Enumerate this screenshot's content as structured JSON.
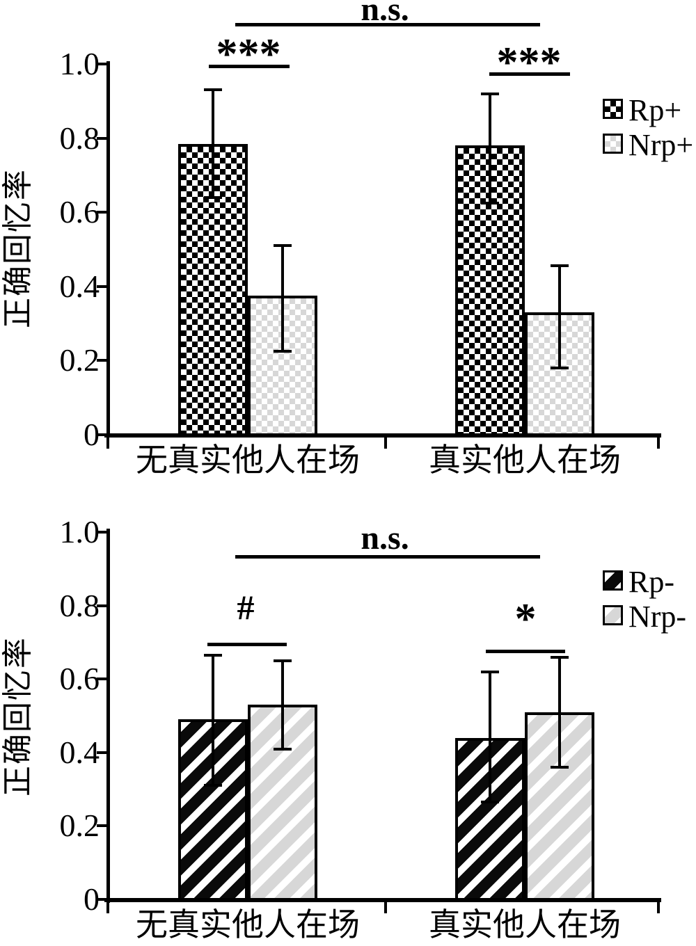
{
  "figure": {
    "background": "#ffffff",
    "ink": "#000000",
    "light_fill": "#d7d7d7",
    "description_texts": {
      "not_significant": "n.s."
    }
  },
  "chart_data": [
    {
      "type": "bar",
      "panel": "top",
      "title": "",
      "ylabel": "正确回忆率",
      "xlabel": "",
      "ylim": [
        0,
        1.0
      ],
      "yticks": [
        "1.0",
        "0.8",
        "0.6",
        "0.4",
        "0.2",
        "0"
      ],
      "categories": [
        "无真实他人在场",
        "真实他人在场"
      ],
      "grid": false,
      "legend_position": "upper-right",
      "series": [
        {
          "name": "Rp+",
          "pattern": "checker-dark",
          "values": [
            0.785,
            0.78
          ],
          "err_high": [
            0.93,
            0.92
          ],
          "err_low": [
            0.64,
            0.625
          ]
        },
        {
          "name": "Nrp+",
          "pattern": "checker-light",
          "values": [
            0.375,
            0.33
          ],
          "err_high": [
            0.51,
            0.455
          ],
          "err_low": [
            0.225,
            0.18
          ]
        }
      ],
      "annotations": {
        "within_group": [
          "***",
          "***"
        ],
        "between_groups": "n.s."
      }
    },
    {
      "type": "bar",
      "panel": "bottom",
      "title": "",
      "ylabel": "正确回忆率",
      "xlabel": "",
      "ylim": [
        0,
        1.0
      ],
      "yticks": [
        "1.0",
        "0.8",
        "0.6",
        "0.4",
        "0.2",
        "0"
      ],
      "categories": [
        "无真实他人在场",
        "真实他人在场"
      ],
      "grid": false,
      "legend_position": "upper-right",
      "series": [
        {
          "name": "Rp-",
          "pattern": "diag-dark",
          "values": [
            0.49,
            0.44
          ],
          "err_high": [
            0.665,
            0.62
          ],
          "err_low": [
            0.31,
            0.265
          ]
        },
        {
          "name": "Nrp-",
          "pattern": "diag-light",
          "values": [
            0.53,
            0.51
          ],
          "err_high": [
            0.65,
            0.66
          ],
          "err_low": [
            0.41,
            0.36
          ]
        }
      ],
      "annotations": {
        "within_group": [
          "#",
          "*"
        ],
        "between_groups": "n.s."
      }
    }
  ]
}
